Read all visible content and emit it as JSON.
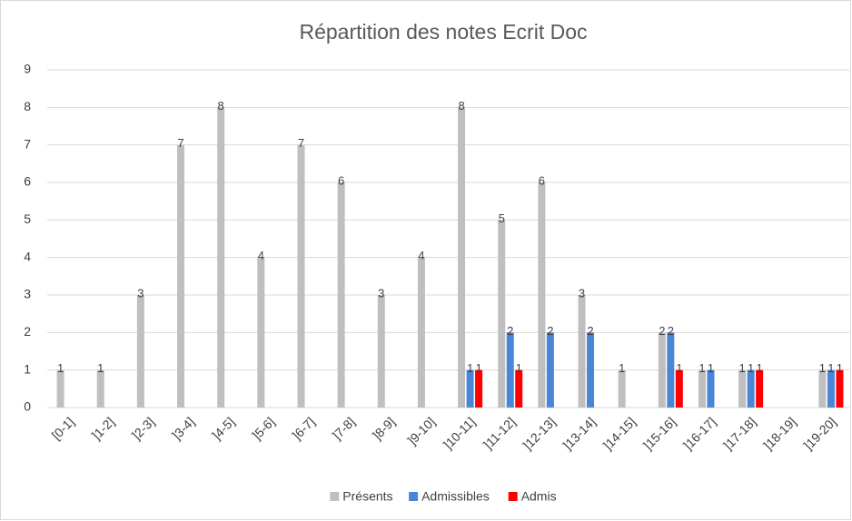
{
  "chart_data": {
    "type": "bar",
    "title": "Répartition des notes Ecrit Doc",
    "categories": [
      "[0-1]",
      "]1-2]",
      "]2-3]",
      "]3-4]",
      "]4-5]",
      "]5-6]",
      "]6-7]",
      "]7-8]",
      "]8-9]",
      "]9-10]",
      "]10-11]",
      "]11-12]",
      "]12-13]",
      "]13-14]",
      "]14-15]",
      "]15-16]",
      "]16-17]",
      "]17-18]",
      "]18-19]",
      "]19-20]"
    ],
    "series": [
      {
        "name": "Présents",
        "color": "#bfbfbf",
        "values": [
          1,
          1,
          3,
          7,
          8,
          4,
          7,
          6,
          3,
          4,
          8,
          5,
          6,
          3,
          1,
          2,
          1,
          1,
          0,
          1
        ]
      },
      {
        "name": "Admissibles",
        "color": "#4a86d8",
        "values": [
          0,
          0,
          0,
          0,
          0,
          0,
          0,
          0,
          0,
          0,
          1,
          2,
          2,
          2,
          0,
          2,
          1,
          1,
          0,
          1
        ]
      },
      {
        "name": "Admis",
        "color": "#ff0000",
        "values": [
          0,
          0,
          0,
          0,
          0,
          0,
          0,
          0,
          0,
          0,
          1,
          1,
          0,
          0,
          0,
          1,
          0,
          1,
          0,
          1
        ]
      }
    ],
    "ylim": [
      0,
      9
    ],
    "yticks": [
      0,
      1,
      2,
      3,
      4,
      5,
      6,
      7,
      8,
      9
    ],
    "grid": true,
    "legend": "bottom"
  }
}
